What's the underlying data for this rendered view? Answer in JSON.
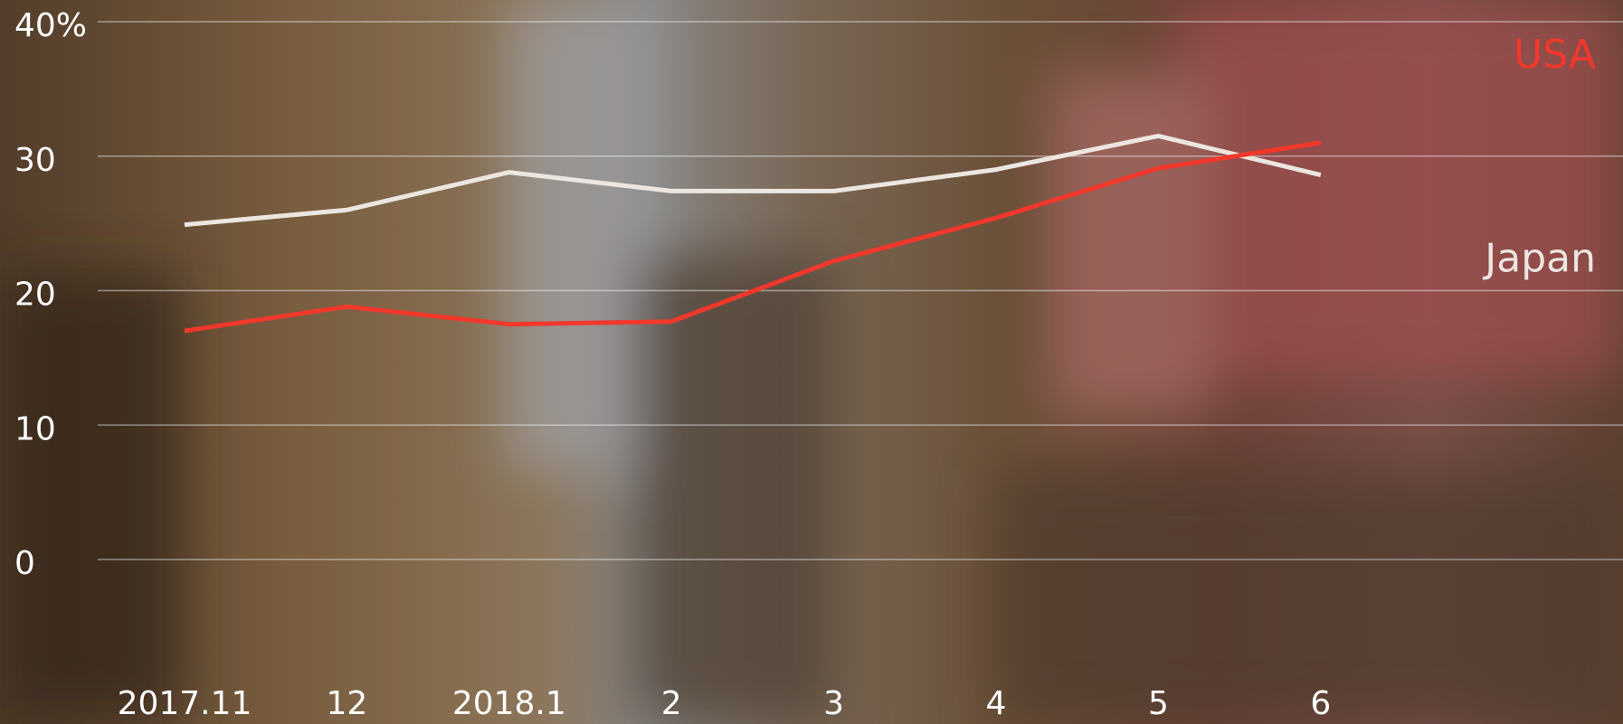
{
  "chart_data": {
    "type": "line",
    "categories": [
      "2017.11",
      "12",
      "2018.1",
      "2",
      "3",
      "4",
      "5",
      "6"
    ],
    "series": [
      {
        "name": "Japan",
        "color": "#ece6e0",
        "values": [
          24.9,
          26.0,
          28.8,
          27.4,
          27.4,
          29.0,
          31.5,
          28.6
        ]
      },
      {
        "name": "USA",
        "color": "#f2382c",
        "values": [
          17.0,
          18.8,
          17.5,
          17.7,
          22.2,
          25.4,
          29.1,
          31.0
        ]
      }
    ],
    "ylim": [
      0,
      40
    ],
    "yticks": [
      0,
      10,
      20,
      30,
      {
        "value": 40,
        "label": "40%"
      }
    ],
    "grid": true
  }
}
